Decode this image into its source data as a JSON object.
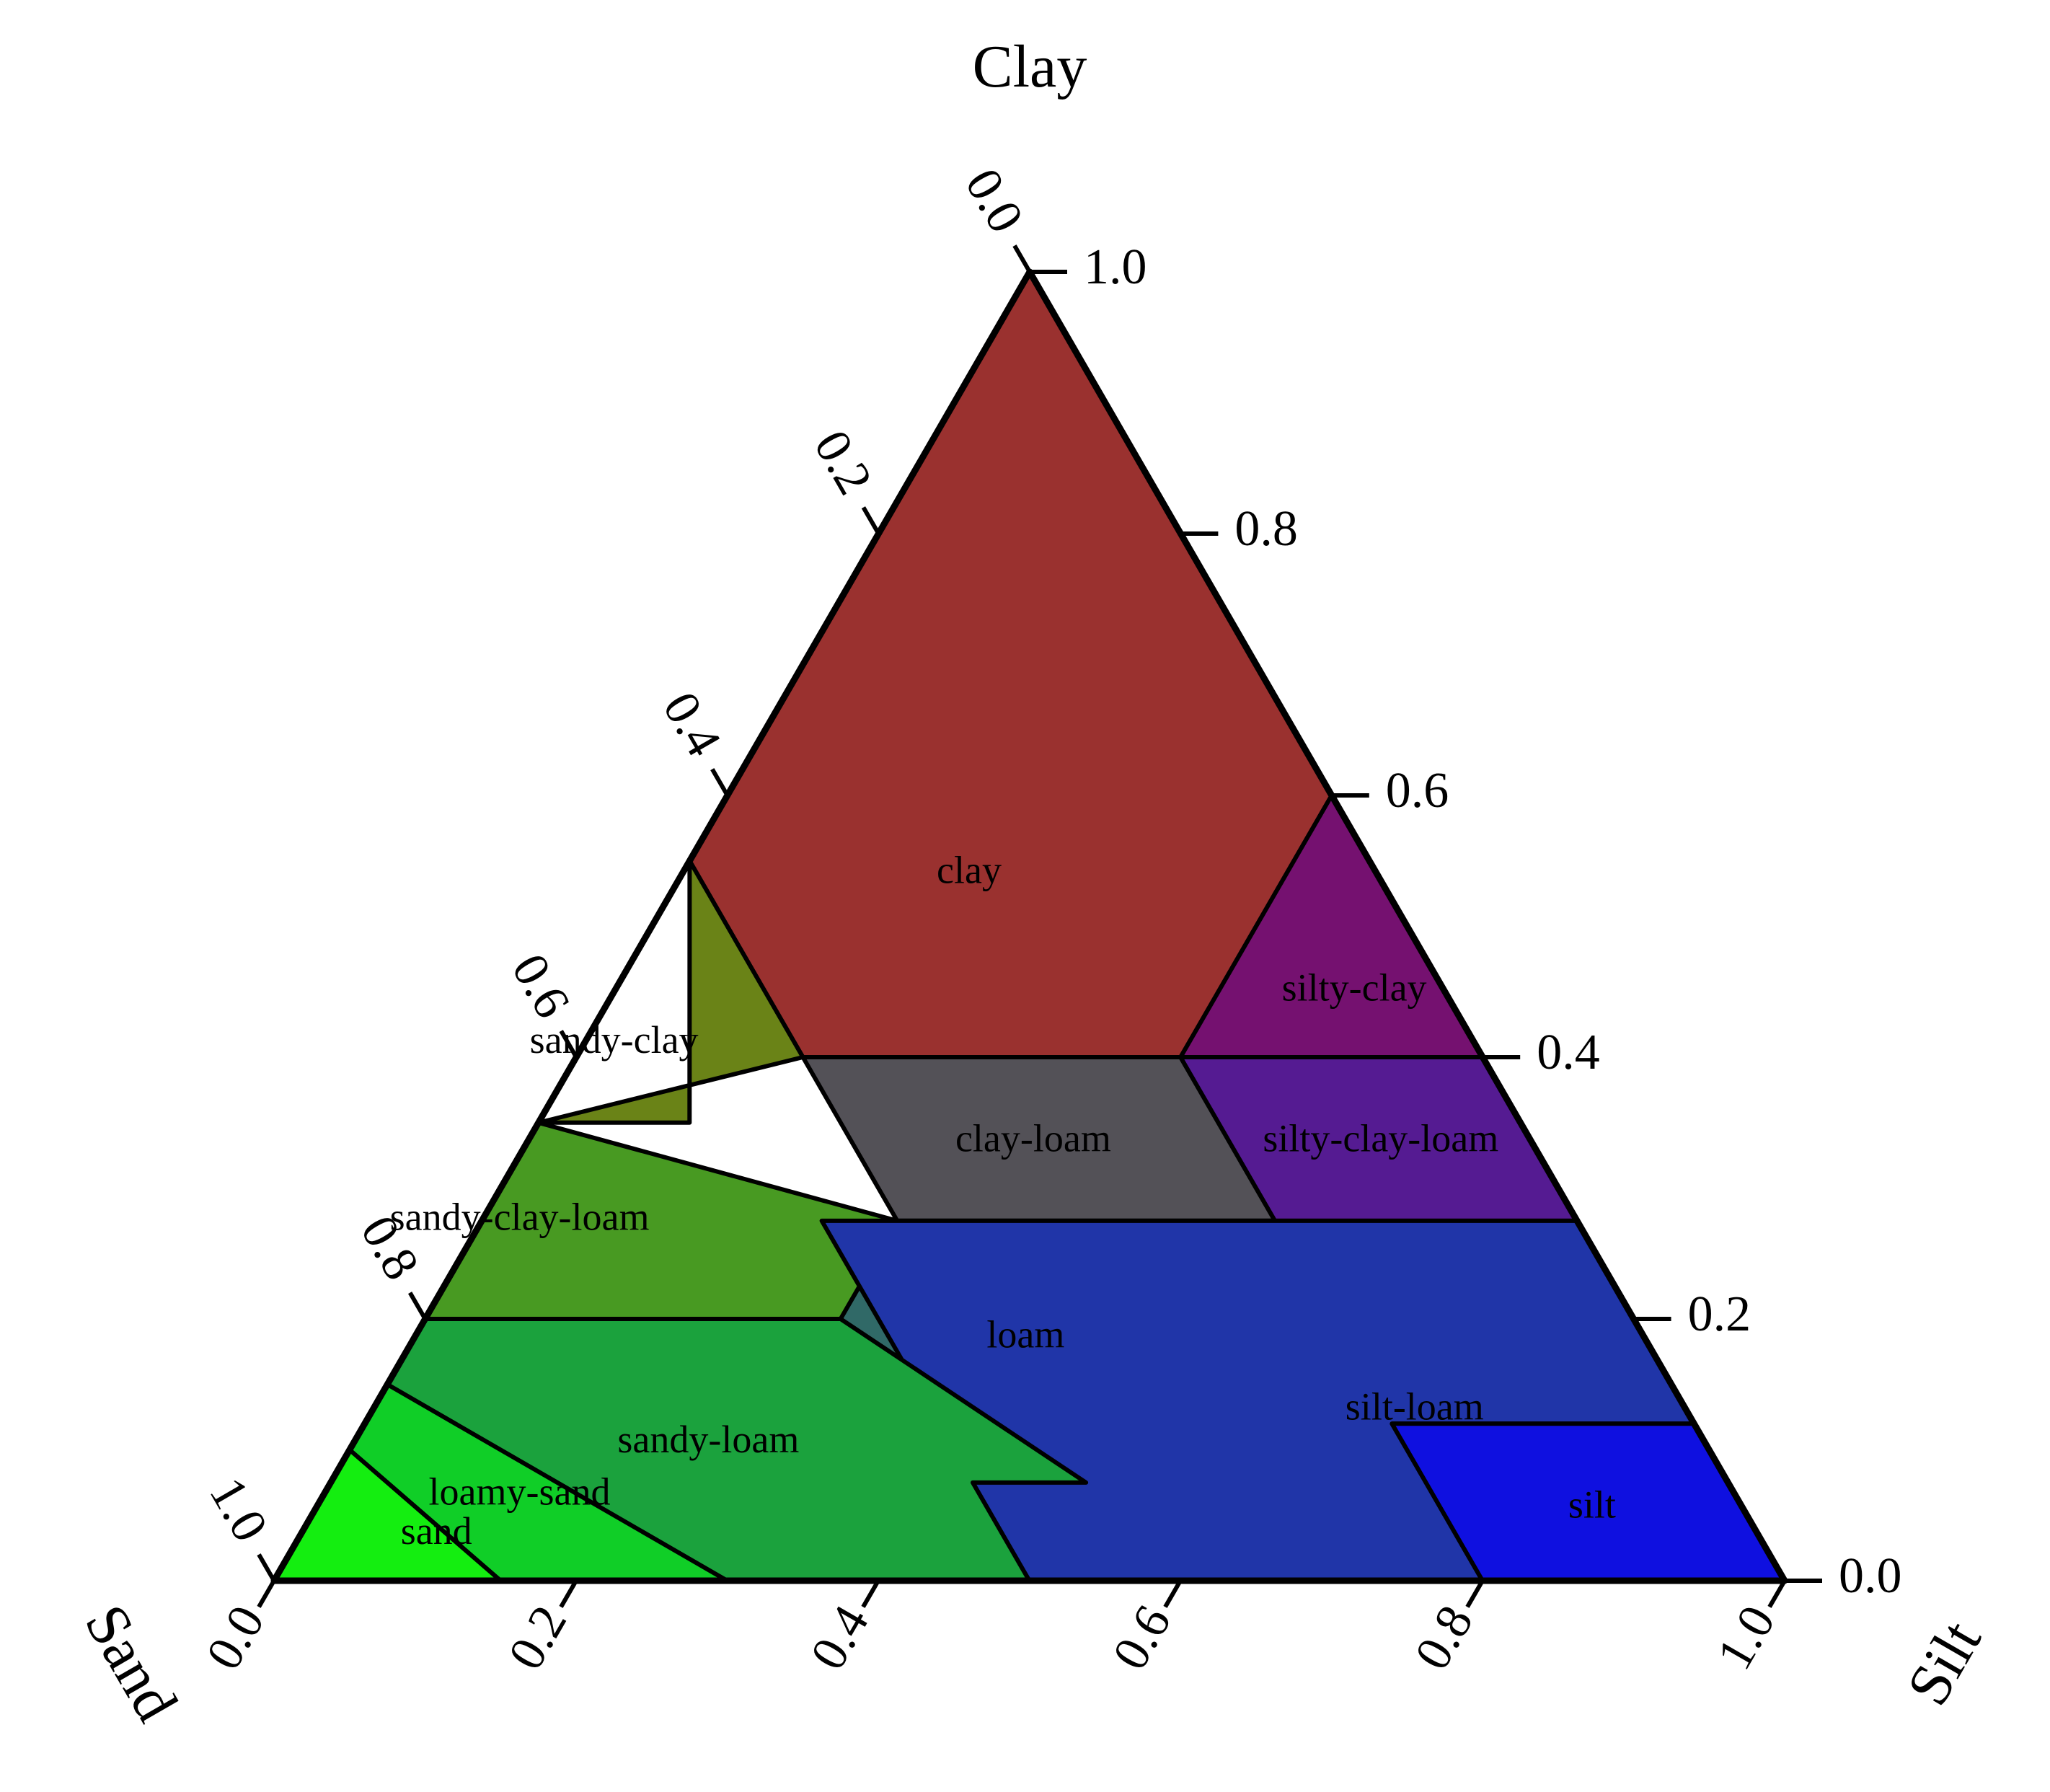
{
  "chart_data": {
    "type": "ternary",
    "axes": {
      "clay": {
        "label": "Clay",
        "ticks": [
          "0.0",
          "0.2",
          "0.4",
          "0.6",
          "0.8",
          "1.0"
        ]
      },
      "clay_side": {
        "ticks": [
          "1.0",
          "0.8",
          "0.6",
          "0.4",
          "0.2",
          "0.0"
        ]
      },
      "sand": {
        "label": "Sand",
        "ticks": [
          "0.0",
          "0.2",
          "0.4",
          "0.6",
          "0.8",
          "1.0"
        ]
      },
      "silt": {
        "label": "Silt"
      }
    },
    "regions": [
      {
        "name": "clay",
        "color": "#9A312F",
        "points": [
          [
            0,
            1
          ],
          [
            0.45,
            0.55
          ],
          [
            0,
            0.6
          ],
          [
            0.2,
            0.4
          ],
          [
            0.4,
            0.4
          ]
        ]
      },
      {
        "name": "silty-clay",
        "color": "#751170",
        "points": [
          [
            0.4,
            0.6
          ],
          [
            0.4,
            0.4
          ],
          [
            0,
            0.6
          ]
        ]
      },
      {
        "name": "sandy-clay",
        "color": "#6A8317",
        "points": [
          [
            0,
            0.55
          ],
          [
            0.45,
            0.55
          ],
          [
            0.2,
            0.35
          ],
          [
            0.35,
            0.45
          ]
        ]
      },
      {
        "name": "clay-loam",
        "color": "#535157",
        "points": [
          [
            0.2,
            0.4
          ],
          [
            0.2,
            0.275
          ],
          [
            0.45,
            0.275
          ],
          [
            0.45,
            0.4
          ]
        ]
      },
      {
        "name": "silty-clay-loam",
        "color": "#551B92",
        "points": [
          [
            0,
            0.4
          ],
          [
            0.4,
            0.4
          ],
          [
            0.2,
            0.275
          ],
          [
            0,
            0.275
          ]
        ]
      },
      {
        "name": "sandy-clay-loam",
        "color": "#489A22",
        "points": [
          [
            0.45,
            0.35
          ],
          [
            0.2,
            0.275
          ],
          [
            0.45,
            0.275
          ],
          [
            0.2,
            0.35
          ]
        ]
      },
      {
        "name": "loam",
        "color": "#306967",
        "points": [
          [
            0.45,
            0.275
          ],
          [
            0.2,
            0.275
          ],
          [
            0.5,
            0.15
          ],
          [
            0.45,
            0.075
          ]
        ]
      },
      {
        "name": "silt-loam",
        "color": "#2035A8",
        "points": [
          [
            0.5,
            0.275
          ],
          [
            0.2,
            0.275
          ],
          [
            0.15,
            0.5
          ],
          [
            0,
            0.075
          ]
        ]
      },
      {
        "name": "silt",
        "color": "#0F10E0",
        "points": [
          [
            0.2,
            0.1
          ],
          [
            0.15,
            0.1
          ],
          [
            0.2,
            0
          ],
          [
            0.2,
            0
          ]
        ]
      },
      {
        "name": "sandy-loam",
        "color": "#1BA23D",
        "points": [
          [
            0.45,
            0.2
          ],
          [
            0.45,
            0.5
          ],
          [
            0.5,
            0.15
          ],
          [
            0.075,
            0.6
          ]
        ]
      },
      {
        "name": "loamy-sand",
        "color": "#10CE27",
        "points": [
          [
            0.9,
            0.1
          ],
          [
            0.85,
            0.15
          ],
          [
            0.7,
            0.3
          ],
          [
            0.0,
            0.8
          ]
        ]
      },
      {
        "name": "sand",
        "color": "#14EE10",
        "points": [
          [
            0.85,
            0.15
          ],
          [
            0.0,
            0.8
          ],
          [
            1,
            0
          ],
          [
            0.0,
            0.0
          ]
        ]
      }
    ]
  }
}
